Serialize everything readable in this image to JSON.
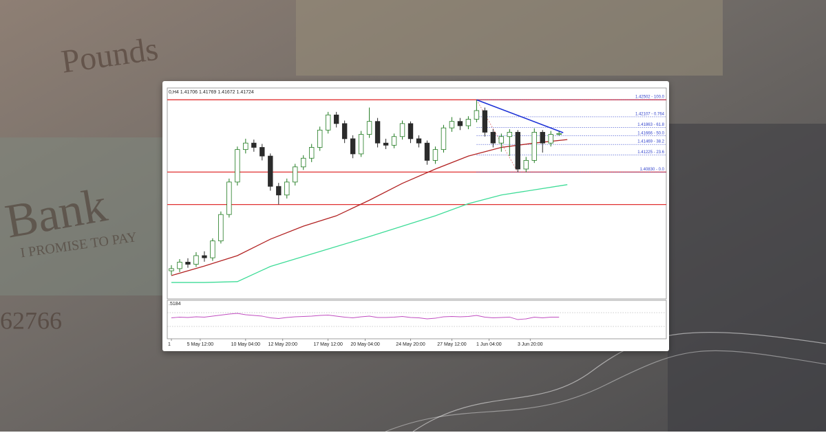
{
  "background": {
    "texts": [
      "Pounds",
      "Bank",
      "I PROMISE TO PAY",
      "62766"
    ]
  },
  "chart_data": {
    "type": "candlestick",
    "header": "0,H4 1.41706 1.41769 1.41672 1.41724",
    "xlim": [
      -0.5,
      60
    ],
    "ylim": [
      1.379,
      1.4263
    ],
    "xticks": [
      {
        "value": 0,
        "label": "1"
      },
      {
        "value": 3.5,
        "label": "5 May 12:00"
      },
      {
        "value": 9,
        "label": "10 May 04:00"
      },
      {
        "value": 13.5,
        "label": "12 May 20:00"
      },
      {
        "value": 19,
        "label": "17 May 12:00"
      },
      {
        "value": 23.5,
        "label": "20 May 04:00"
      },
      {
        "value": 29,
        "label": "24 May 20:00"
      },
      {
        "value": 34,
        "label": "27 May 12:00"
      },
      {
        "value": 38.5,
        "label": "1 Jun 04:00"
      },
      {
        "value": 43.5,
        "label": "3 Jun 20:00"
      }
    ],
    "up_color": "#1f7a1f",
    "down_color": "#2b2b2b",
    "ohlc": [
      [
        1.3855,
        1.3868,
        1.3845,
        1.386
      ],
      [
        1.386,
        1.3882,
        1.3852,
        1.3875
      ],
      [
        1.3875,
        1.3884,
        1.3862,
        1.387
      ],
      [
        1.387,
        1.3898,
        1.3864,
        1.389
      ],
      [
        1.389,
        1.39,
        1.3876,
        1.3885
      ],
      [
        1.3885,
        1.393,
        1.3878,
        1.3924
      ],
      [
        1.3924,
        1.3992,
        1.3918,
        1.3985
      ],
      [
        1.3985,
        1.4068,
        1.3978,
        1.406
      ],
      [
        1.406,
        1.4142,
        1.4052,
        1.4135
      ],
      [
        1.4135,
        1.416,
        1.4126,
        1.415
      ],
      [
        1.415,
        1.4158,
        1.413,
        1.414
      ],
      [
        1.414,
        1.4148,
        1.411,
        1.412
      ],
      [
        1.412,
        1.4126,
        1.404,
        1.405
      ],
      [
        1.405,
        1.4058,
        1.4008,
        1.403
      ],
      [
        1.403,
        1.4068,
        1.4022,
        1.406
      ],
      [
        1.406,
        1.4102,
        1.4052,
        1.4095
      ],
      [
        1.4095,
        1.4122,
        1.4088,
        1.4115
      ],
      [
        1.4115,
        1.4148,
        1.4106,
        1.414
      ],
      [
        1.414,
        1.4188,
        1.4132,
        1.418
      ],
      [
        1.418,
        1.4222,
        1.4172,
        1.4215
      ],
      [
        1.4215,
        1.4222,
        1.4186,
        1.4195
      ],
      [
        1.4195,
        1.4202,
        1.415,
        1.416
      ],
      [
        1.416,
        1.4168,
        1.4115,
        1.4125
      ],
      [
        1.4125,
        1.4178,
        1.4118,
        1.417
      ],
      [
        1.417,
        1.4232,
        1.4162,
        1.42
      ],
      [
        1.42,
        1.4208,
        1.414,
        1.415
      ],
      [
        1.415,
        1.416,
        1.4136,
        1.4145
      ],
      [
        1.4145,
        1.4172,
        1.4138,
        1.4165
      ],
      [
        1.4165,
        1.4202,
        1.4158,
        1.4195
      ],
      [
        1.4195,
        1.42,
        1.415,
        1.416
      ],
      [
        1.416,
        1.4168,
        1.414,
        1.415
      ],
      [
        1.415,
        1.4156,
        1.41,
        1.411
      ],
      [
        1.411,
        1.4142,
        1.4102,
        1.4135
      ],
      [
        1.4135,
        1.4192,
        1.4128,
        1.4185
      ],
      [
        1.4185,
        1.421,
        1.4176,
        1.42
      ],
      [
        1.42,
        1.4208,
        1.418,
        1.419
      ],
      [
        1.419,
        1.4212,
        1.4182,
        1.4205
      ],
      [
        1.4205,
        1.425,
        1.4198,
        1.4225
      ],
      [
        1.4225,
        1.4232,
        1.4165,
        1.4175
      ],
      [
        1.4175,
        1.4182,
        1.414,
        1.415
      ],
      [
        1.415,
        1.4172,
        1.413,
        1.4165
      ],
      [
        1.4165,
        1.4182,
        1.412,
        1.4175
      ],
      [
        1.4175,
        1.418,
        1.4083,
        1.409
      ],
      [
        1.409,
        1.4118,
        1.4083,
        1.411
      ],
      [
        1.411,
        1.4184,
        1.4104,
        1.4175
      ],
      [
        1.4175,
        1.418,
        1.4128,
        1.415
      ],
      [
        1.415,
        1.4178,
        1.4142,
        1.417
      ],
      [
        1.417,
        1.4177,
        1.4167,
        1.4172
      ]
    ],
    "moving_averages": [
      {
        "color": "#b22222",
        "x": [
          0,
          4,
          8,
          12,
          16,
          20,
          24,
          28,
          32,
          36,
          40,
          44,
          48
        ],
        "values": [
          1.3844,
          1.3866,
          1.389,
          1.3928,
          1.3958,
          1.3982,
          1.4018,
          1.4057,
          1.409,
          1.412,
          1.414,
          1.415,
          1.4158
        ]
      },
      {
        "color": "#3ddc97",
        "x": [
          0,
          4,
          8,
          12,
          16,
          20,
          24,
          28,
          32,
          36,
          40,
          44,
          48
        ],
        "values": [
          1.3828,
          1.3828,
          1.383,
          1.3865,
          1.3888,
          1.3911,
          1.3934,
          1.3958,
          1.3982,
          1.401,
          1.403,
          1.4042,
          1.4054
        ]
      }
    ],
    "hlines": {
      "color": "#e03030",
      "values": [
        1.425,
        1.4083,
        1.4008
      ]
    },
    "trendline": {
      "color": "#1a2fd6",
      "x": [
        37,
        47.5
      ],
      "values": [
        1.425,
        1.4174
      ]
    },
    "fib_anchor": {
      "color": "#e07070",
      "x": [
        37,
        42
      ],
      "values": [
        1.425,
        1.4083
      ]
    },
    "fib_color": "#3344cc",
    "fib_start": 37,
    "fib_levels": [
      {
        "value": 1.42502,
        "label": "1.42502 - 100.0"
      },
      {
        "value": 1.42107,
        "label": "1.42107 - 0.764"
      },
      {
        "value": 1.41863,
        "label": "1.41863 - 61.8"
      },
      {
        "value": 1.41666,
        "label": "1.41666 - 50.0"
      },
      {
        "value": 1.41469,
        "label": "1.41469 - 38.2"
      },
      {
        "value": 1.41225,
        "label": "1.41225 - 23.6"
      },
      {
        "value": 1.4083,
        "label": "1.40830 - 0.0"
      }
    ],
    "indicator": {
      "label": ".5184",
      "color": "#c04cc0",
      "ylim": [
        0,
        100
      ],
      "levels": [
        70,
        30
      ],
      "values": [
        55,
        57,
        56,
        58,
        57,
        60,
        63,
        66,
        68,
        64,
        62,
        60,
        55,
        53,
        56,
        58,
        59,
        60,
        62,
        63,
        60,
        57,
        55,
        58,
        60,
        56,
        56,
        57,
        59,
        56,
        55,
        52,
        54,
        58,
        59,
        58,
        59,
        62,
        57,
        55,
        56,
        57,
        50,
        52,
        57,
        55,
        57,
        57
      ]
    }
  }
}
